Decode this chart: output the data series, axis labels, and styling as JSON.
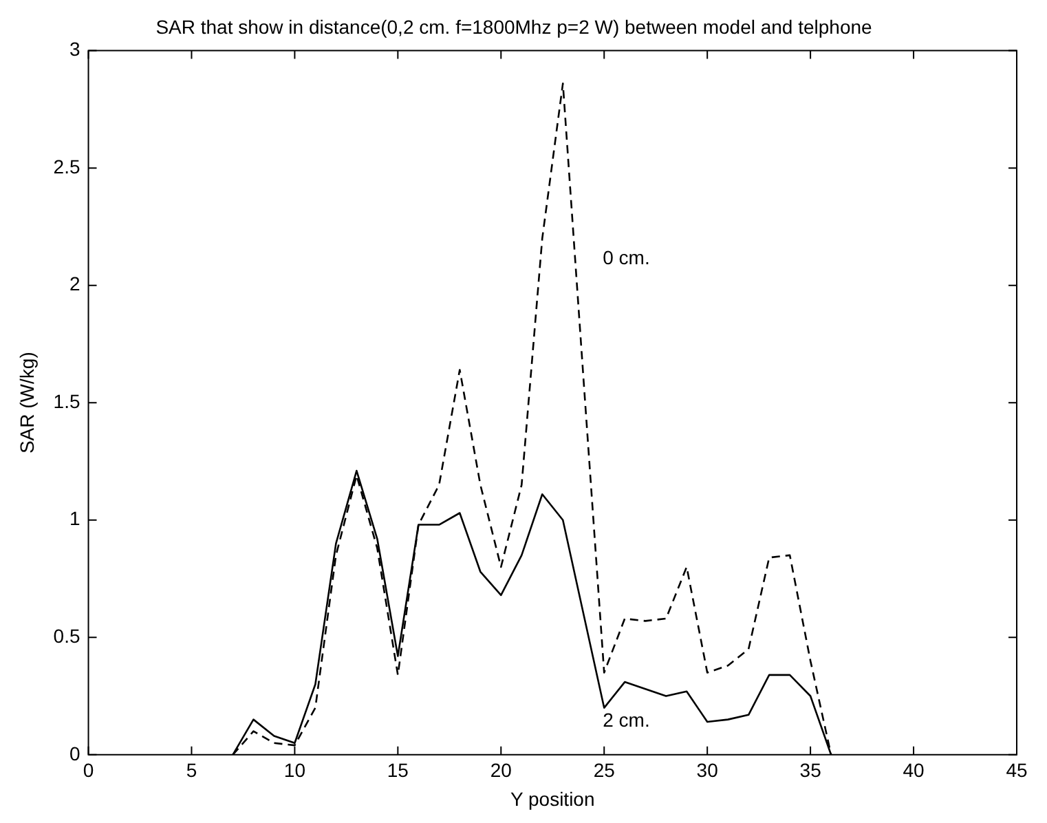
{
  "chart_data": {
    "type": "line",
    "title": "SAR that show in distance(0,2 cm. f=1800Mhz p=2 W) between model and telphone",
    "xlabel": "Y position",
    "ylabel": "SAR (W/kg)",
    "x": [
      7,
      8,
      9,
      10,
      11,
      12,
      13,
      14,
      15,
      16,
      17,
      18,
      19,
      20,
      21,
      22,
      23,
      24,
      25,
      26,
      27,
      28,
      29,
      30,
      31,
      32,
      33,
      34,
      35,
      36
    ],
    "series": [
      {
        "name": "0 cm.",
        "color": "#000000",
        "line_style": "dashed",
        "values": [
          0,
          0.1,
          0.05,
          0.04,
          0.2,
          0.85,
          1.19,
          0.88,
          0.34,
          0.98,
          1.15,
          1.64,
          1.15,
          0.8,
          1.15,
          2.2,
          2.86,
          1.6,
          0.35,
          0.58,
          0.57,
          0.58,
          0.8,
          0.35,
          0.38,
          0.45,
          0.84,
          0.85,
          0.4,
          0
        ]
      },
      {
        "name": "2 cm.",
        "color": "#000000",
        "line_style": "solid",
        "values": [
          0,
          0.15,
          0.08,
          0.05,
          0.3,
          0.9,
          1.21,
          0.92,
          0.42,
          0.98,
          0.98,
          1.03,
          0.78,
          0.68,
          0.85,
          1.11,
          1.0,
          0.6,
          0.2,
          0.31,
          0.28,
          0.25,
          0.27,
          0.14,
          0.15,
          0.17,
          0.34,
          0.34,
          0.25,
          0
        ]
      }
    ],
    "xlim": [
      0,
      45
    ],
    "xticks": [
      0,
      5,
      10,
      15,
      20,
      25,
      30,
      35,
      40,
      45
    ],
    "ylim": [
      0,
      3
    ],
    "yticks": [
      0,
      0.5,
      1,
      1.5,
      2,
      2.5,
      3
    ],
    "grid": false,
    "legend": false,
    "marker": "none"
  }
}
